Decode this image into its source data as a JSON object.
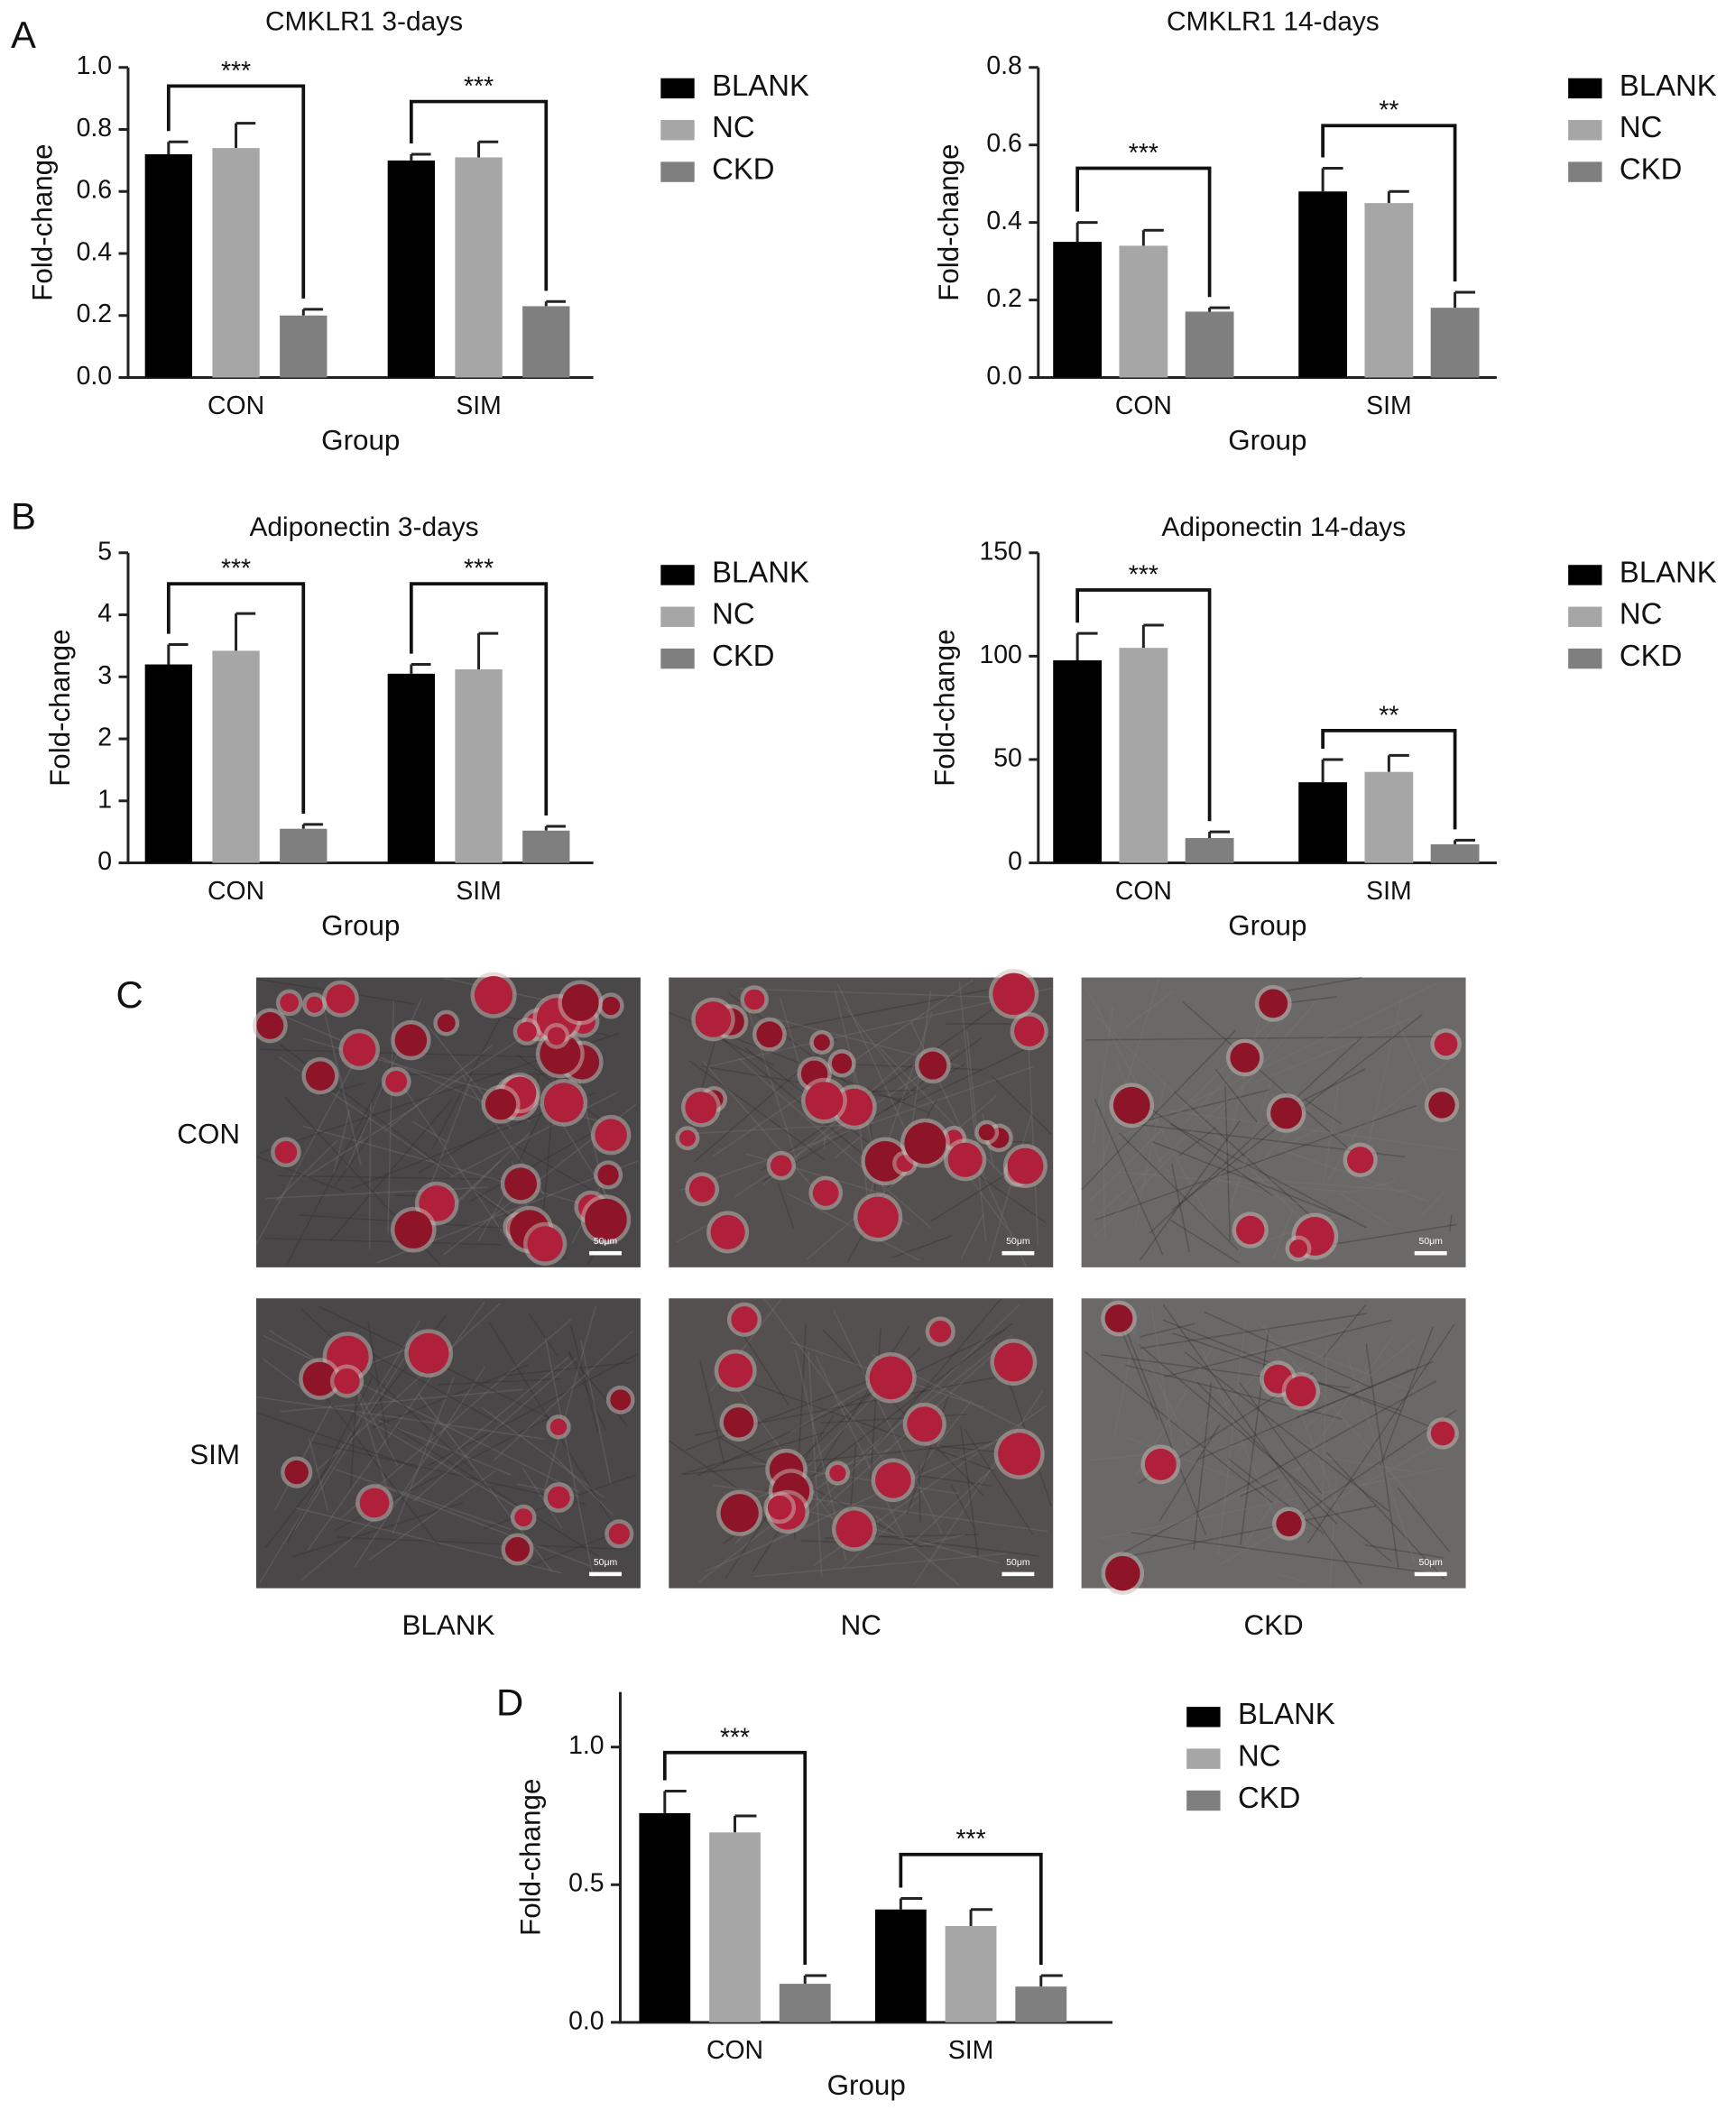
{
  "panel_labels": [
    "A",
    "B",
    "C",
    "D"
  ],
  "micrographs": {
    "rows": [
      "CON",
      "SIM"
    ],
    "columns": [
      "BLANK",
      "NC",
      "CKD"
    ],
    "scale_bar": "50μm"
  },
  "chart_data": [
    {
      "type": "bar",
      "title": "CMKLR1 3-days",
      "x_label": "Group",
      "y_label": "Fold-change",
      "categories": [
        "CON",
        "SIM"
      ],
      "series": [
        {
          "name": "BLANK",
          "color": "#000000",
          "values": [
            0.72,
            0.7
          ],
          "errors": [
            0.04,
            0.02
          ]
        },
        {
          "name": "NC",
          "color": "#a6a6a6",
          "values": [
            0.74,
            0.71
          ],
          "errors": [
            0.08,
            0.05
          ]
        },
        {
          "name": "CKD",
          "color": "#7f7f7f",
          "values": [
            0.2,
            0.23
          ],
          "errors": [
            0.02,
            0.015
          ]
        }
      ],
      "ylim": [
        0,
        1.0
      ],
      "yticks": [
        {
          "value": 0,
          "label": "0.0"
        },
        0.2,
        0.4,
        0.6,
        0.8,
        {
          "value": 1.0,
          "label": "1.0"
        }
      ],
      "annotations": [
        {
          "text": "***",
          "category": 0,
          "y": 0.94
        },
        {
          "text": "***",
          "category": 1,
          "y": 0.89
        }
      ],
      "legend": "right"
    },
    {
      "type": "bar",
      "title": "CMKLR1 14-days",
      "x_label": "Group",
      "y_label": "Fold-change",
      "categories": [
        "CON",
        "SIM"
      ],
      "series": [
        {
          "name": "BLANK",
          "color": "#000000",
          "values": [
            0.35,
            0.48
          ],
          "errors": [
            0.05,
            0.06
          ]
        },
        {
          "name": "NC",
          "color": "#a6a6a6",
          "values": [
            0.34,
            0.45
          ],
          "errors": [
            0.04,
            0.03
          ]
        },
        {
          "name": "CKD",
          "color": "#7f7f7f",
          "values": [
            0.17,
            0.18
          ],
          "errors": [
            0.01,
            0.04
          ]
        }
      ],
      "ylim": [
        0,
        0.8
      ],
      "yticks": [
        {
          "value": 0,
          "label": "0.0"
        },
        0.2,
        0.4,
        0.6,
        0.8
      ],
      "annotations": [
        {
          "text": "***",
          "category": 0,
          "y": 0.54
        },
        {
          "text": "**",
          "category": 1,
          "y": 0.65
        }
      ],
      "legend": "right"
    },
    {
      "type": "bar",
      "title": "Adiponectin 3-days",
      "x_label": "Group",
      "y_label": "Fold-change",
      "categories": [
        "CON",
        "SIM"
      ],
      "series": [
        {
          "name": "BLANK",
          "color": "#000000",
          "values": [
            3.2,
            3.05
          ],
          "errors": [
            0.32,
            0.15
          ]
        },
        {
          "name": "NC",
          "color": "#a6a6a6",
          "values": [
            3.42,
            3.12
          ],
          "errors": [
            0.6,
            0.58
          ]
        },
        {
          "name": "CKD",
          "color": "#7f7f7f",
          "values": [
            0.55,
            0.52
          ],
          "errors": [
            0.07,
            0.07
          ]
        }
      ],
      "ylim": [
        0,
        5
      ],
      "yticks": [
        0,
        1,
        2,
        3,
        4,
        5
      ],
      "annotations": [
        {
          "text": "***",
          "category": 0,
          "y": 4.5
        },
        {
          "text": "***",
          "category": 1,
          "y": 4.5
        }
      ],
      "legend": "right"
    },
    {
      "type": "bar",
      "title": "Adiponectin 14-days",
      "x_label": "Group",
      "y_label": "Fold-change",
      "categories": [
        "CON",
        "SIM"
      ],
      "series": [
        {
          "name": "BLANK",
          "color": "#000000",
          "values": [
            98,
            39
          ],
          "errors": [
            13,
            11
          ]
        },
        {
          "name": "NC",
          "color": "#a6a6a6",
          "values": [
            104,
            44
          ],
          "errors": [
            11,
            8
          ]
        },
        {
          "name": "CKD",
          "color": "#7f7f7f",
          "values": [
            12,
            9
          ],
          "errors": [
            3,
            2
          ]
        }
      ],
      "ylim": [
        0,
        150
      ],
      "yticks": [
        0,
        50,
        100,
        150
      ],
      "annotations": [
        {
          "text": "***",
          "category": 0,
          "y": 132
        },
        {
          "text": "**",
          "category": 1,
          "y": 64
        }
      ],
      "legend": "right"
    },
    {
      "type": "bar",
      "x_label": "Group",
      "y_label": "Fold-change",
      "categories": [
        "CON",
        "SIM"
      ],
      "series": [
        {
          "name": "BLANK",
          "color": "#000000",
          "values": [
            0.76,
            0.41
          ],
          "errors": [
            0.08,
            0.04
          ]
        },
        {
          "name": "NC",
          "color": "#a6a6a6",
          "values": [
            0.69,
            0.35
          ],
          "errors": [
            0.06,
            0.06
          ]
        },
        {
          "name": "CKD",
          "color": "#7f7f7f",
          "values": [
            0.14,
            0.13
          ],
          "errors": [
            0.03,
            0.04
          ]
        }
      ],
      "ylim": [
        0,
        1.2
      ],
      "yticks": [
        {
          "value": 0,
          "label": "0.0"
        },
        0.5,
        {
          "value": 1.0,
          "label": "1.0"
        }
      ],
      "annotations": [
        {
          "text": "***",
          "category": 0,
          "y": 0.98
        },
        {
          "text": "***",
          "category": 1,
          "y": 0.61
        }
      ],
      "legend": "right"
    }
  ]
}
